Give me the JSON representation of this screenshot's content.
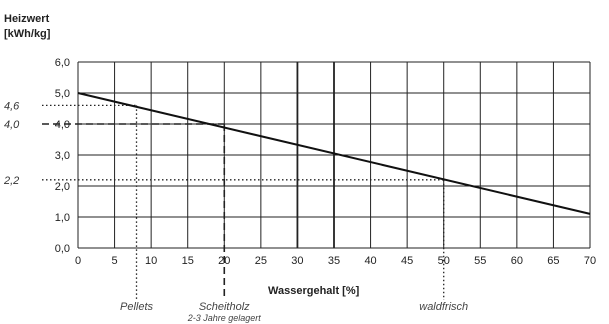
{
  "chart_data": {
    "type": "line",
    "title": "",
    "ylabel_line1": "Heizwert",
    "ylabel_line2": "[kWh/kg]",
    "xlabel": "Wassergehalt [%]",
    "xlim": [
      0,
      70
    ],
    "ylim": [
      0,
      6
    ],
    "xticks": [
      0,
      5,
      10,
      15,
      20,
      25,
      30,
      35,
      40,
      45,
      50,
      55,
      60,
      65,
      70
    ],
    "xtick_labels": [
      "0",
      "5",
      "10",
      "15",
      "20",
      "25",
      "30",
      "35",
      "40",
      "45",
      "50",
      "55",
      "60",
      "65",
      "70"
    ],
    "yticks": [
      0,
      1,
      2,
      3,
      4,
      5,
      6
    ],
    "ytick_labels": [
      "0,0",
      "1,0",
      "2,0",
      "3,0",
      "4,0",
      "5,0",
      "6,0"
    ],
    "grid": true,
    "bold_vertical_gridlines": [
      30,
      35
    ],
    "series": [
      {
        "x": [
          0,
          70
        ],
        "y": [
          5.0,
          1.1
        ],
        "color": "#111111"
      }
    ],
    "reference_lines": [
      {
        "x": 8,
        "y": 4.6,
        "style": "dotted"
      },
      {
        "x": 20,
        "y": 4.0,
        "style": "dashed"
      },
      {
        "x": 50,
        "y": 2.2,
        "style": "dotted"
      }
    ],
    "side_labels": [
      {
        "y": 4.6,
        "text": "4,6"
      },
      {
        "y": 4.0,
        "text": "4,0"
      },
      {
        "y": 2.2,
        "text": "2,2"
      }
    ],
    "annotations": [
      {
        "x": 8,
        "text": "Pellets",
        "subtext": ""
      },
      {
        "x": 20,
        "text": "Scheitholz",
        "subtext": "2-3 Jahre gelagert"
      },
      {
        "x": 50,
        "text": "waldfrisch",
        "subtext": ""
      }
    ]
  }
}
